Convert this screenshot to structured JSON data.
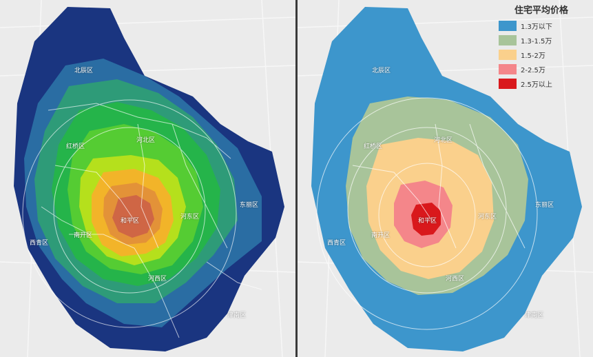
{
  "districts": {
    "beichen": "北辰区",
    "hongqiao": "红桥区",
    "hebei": "河北区",
    "dongli": "东丽区",
    "heping": "和平区",
    "hedong": "河东区",
    "nankai": "南开区",
    "xiqing": "西青区",
    "hexi": "河西区",
    "jinnan": "津南区"
  },
  "legend": {
    "title": "住宅平均价格",
    "items": [
      {
        "label": "1.3万以下",
        "color": "#3d96cc"
      },
      {
        "label": "1.3-1.5万",
        "color": "#a8c49a"
      },
      {
        "label": "1.5-2万",
        "color": "#fad08c"
      },
      {
        "label": "2-2.5万",
        "color": "#f4868a"
      },
      {
        "label": "2.5万以上",
        "color": "#d9181c"
      }
    ]
  },
  "colors": {
    "left_ramp": [
      "#1a3580",
      "#2a6da3",
      "#2e9b78",
      "#25b44a",
      "#55cc33",
      "#b5e01c",
      "#f2b429",
      "#e39238",
      "#cf6645"
    ],
    "map_background": "#ebebeb"
  }
}
